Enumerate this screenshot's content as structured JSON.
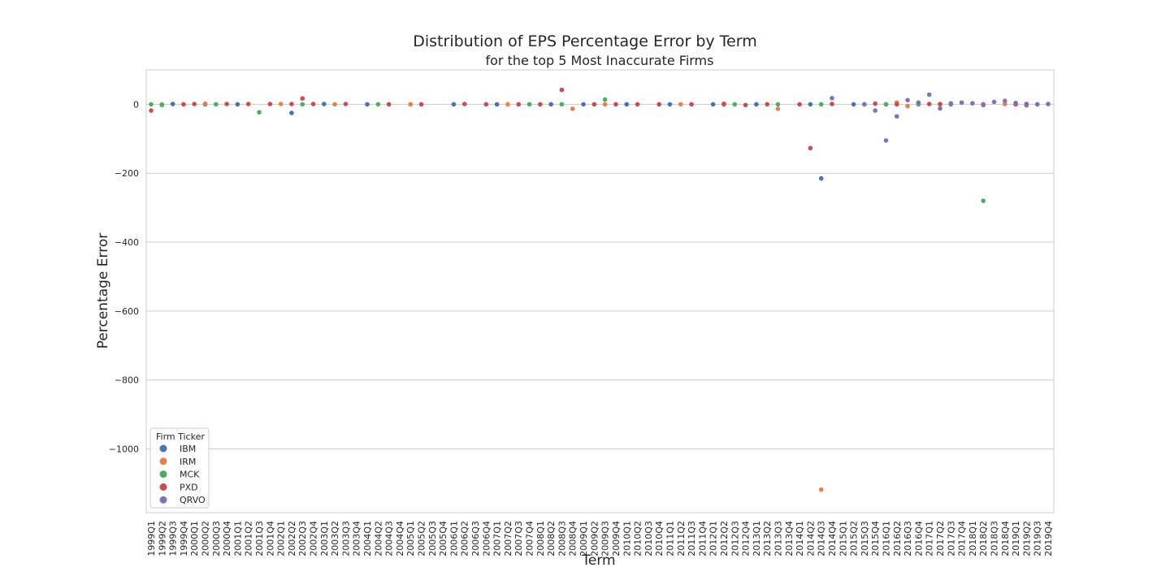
{
  "chart_data": {
    "type": "scatter",
    "title": "Distribution of EPS Percentage Error by Term",
    "subtitle": "for the top 5 Most Inaccurate Firms",
    "xlabel": "Term",
    "ylabel": "Percentage Error",
    "ylim": [
      -1185,
      100
    ],
    "yticks": [
      0,
      -200,
      -400,
      -600,
      -800,
      -1000
    ],
    "grid": "horizontal",
    "legend": {
      "title": "Firm Ticker",
      "placement": "lower-left"
    },
    "categories": [
      "1999Q1",
      "1999Q2",
      "1999Q3",
      "1999Q4",
      "2000Q1",
      "2000Q2",
      "2000Q3",
      "2000Q4",
      "2001Q1",
      "2001Q2",
      "2001Q3",
      "2001Q4",
      "2002Q1",
      "2002Q2",
      "2002Q3",
      "2002Q4",
      "2003Q1",
      "2003Q2",
      "2003Q3",
      "2003Q4",
      "2004Q1",
      "2004Q2",
      "2004Q3",
      "2004Q4",
      "2005Q1",
      "2005Q2",
      "2005Q3",
      "2005Q4",
      "2006Q1",
      "2006Q2",
      "2006Q3",
      "2006Q4",
      "2007Q1",
      "2007Q2",
      "2007Q3",
      "2007Q4",
      "2008Q1",
      "2008Q2",
      "2008Q3",
      "2008Q4",
      "2009Q1",
      "2009Q2",
      "2009Q3",
      "2009Q4",
      "2010Q1",
      "2010Q2",
      "2010Q3",
      "2010Q4",
      "2011Q1",
      "2011Q2",
      "2011Q3",
      "2011Q4",
      "2012Q1",
      "2012Q2",
      "2012Q3",
      "2012Q4",
      "2013Q1",
      "2013Q2",
      "2013Q3",
      "2013Q4",
      "2014Q1",
      "2014Q2",
      "2014Q3",
      "2014Q4",
      "2015Q1",
      "2015Q2",
      "2015Q3",
      "2015Q4",
      "2016Q1",
      "2016Q2",
      "2016Q3",
      "2016Q4",
      "2017Q1",
      "2017Q2",
      "2017Q3",
      "2017Q4",
      "2018Q1",
      "2018Q2",
      "2018Q3",
      "2018Q4",
      "2019Q1",
      "2019Q2",
      "2019Q3",
      "2019Q4"
    ],
    "series": [
      {
        "name": "IBM",
        "color": "#4c72b0",
        "points": [
          [
            "1999Q3",
            1
          ],
          [
            "2000Q2",
            0
          ],
          [
            "2001Q1",
            0
          ],
          [
            "2002Q2",
            -25
          ],
          [
            "2003Q1",
            1
          ],
          [
            "2004Q1",
            0
          ],
          [
            "2005Q1",
            0
          ],
          [
            "2006Q1",
            0
          ],
          [
            "2007Q1",
            0
          ],
          [
            "2008Q2",
            0
          ],
          [
            "2009Q1",
            0
          ],
          [
            "2010Q1",
            0
          ],
          [
            "2011Q1",
            0
          ],
          [
            "2012Q1",
            0
          ],
          [
            "2013Q1",
            0
          ],
          [
            "2014Q2",
            0
          ],
          [
            "2014Q3",
            -215
          ],
          [
            "2015Q2",
            0
          ],
          [
            "2016Q1",
            0
          ],
          [
            "2017Q3",
            0
          ]
        ]
      },
      {
        "name": "IRM",
        "color": "#dd8452",
        "points": [
          [
            "1999Q2",
            0
          ],
          [
            "2000Q2",
            2
          ],
          [
            "2002Q1",
            1
          ],
          [
            "2003Q2",
            0
          ],
          [
            "2005Q1",
            0
          ],
          [
            "2007Q2",
            0
          ],
          [
            "2008Q4",
            -13
          ],
          [
            "2009Q3",
            0
          ],
          [
            "2011Q2",
            0
          ],
          [
            "2012Q2",
            2
          ],
          [
            "2013Q3",
            -13
          ],
          [
            "2014Q3",
            -1118
          ],
          [
            "2015Q3",
            0
          ],
          [
            "2016Q2",
            5
          ],
          [
            "2016Q3",
            -5
          ],
          [
            "2017Q2",
            0
          ],
          [
            "2018Q4",
            1
          ]
        ]
      },
      {
        "name": "MCK",
        "color": "#55a868",
        "points": [
          [
            "1999Q1",
            0
          ],
          [
            "1999Q2",
            -2
          ],
          [
            "2000Q3",
            0
          ],
          [
            "2001Q3",
            -23
          ],
          [
            "2002Q3",
            0
          ],
          [
            "2004Q2",
            0
          ],
          [
            "2007Q4",
            0
          ],
          [
            "2008Q3",
            0
          ],
          [
            "2009Q3",
            14
          ],
          [
            "2012Q3",
            0
          ],
          [
            "2013Q3",
            0
          ],
          [
            "2014Q3",
            0
          ],
          [
            "2016Q1",
            0
          ],
          [
            "2016Q4",
            0
          ],
          [
            "2017Q3",
            0
          ],
          [
            "2018Q2",
            -280
          ],
          [
            "2019Q3",
            0
          ]
        ]
      },
      {
        "name": "PXD",
        "color": "#c44e52",
        "points": [
          [
            "1999Q1",
            -18
          ],
          [
            "1999Q4",
            0
          ],
          [
            "2000Q1",
            1
          ],
          [
            "2000Q4",
            1
          ],
          [
            "2001Q2",
            1
          ],
          [
            "2001Q4",
            1
          ],
          [
            "2002Q2",
            1
          ],
          [
            "2002Q3",
            17
          ],
          [
            "2002Q4",
            1
          ],
          [
            "2003Q3",
            1
          ],
          [
            "2004Q3",
            0
          ],
          [
            "2005Q2",
            0
          ],
          [
            "2006Q2",
            1
          ],
          [
            "2006Q4",
            0
          ],
          [
            "2007Q3",
            0
          ],
          [
            "2008Q1",
            0
          ],
          [
            "2008Q3",
            42
          ],
          [
            "2009Q2",
            0
          ],
          [
            "2009Q4",
            0
          ],
          [
            "2010Q2",
            0
          ],
          [
            "2010Q4",
            0
          ],
          [
            "2011Q3",
            0
          ],
          [
            "2012Q2",
            0
          ],
          [
            "2012Q4",
            -2
          ],
          [
            "2013Q2",
            0
          ],
          [
            "2014Q1",
            0
          ],
          [
            "2014Q2",
            -127
          ],
          [
            "2014Q4",
            1
          ],
          [
            "2015Q4",
            2
          ],
          [
            "2016Q2",
            0
          ],
          [
            "2017Q1",
            1
          ],
          [
            "2017Q2",
            1
          ],
          [
            "2018Q2",
            0
          ],
          [
            "2019Q1",
            0
          ],
          [
            "2019Q2",
            1
          ]
        ]
      },
      {
        "name": "QRVO",
        "color": "#8172b2",
        "points": [
          [
            "2014Q4",
            18
          ],
          [
            "2015Q3",
            0
          ],
          [
            "2015Q4",
            -18
          ],
          [
            "2016Q1",
            -105
          ],
          [
            "2016Q2",
            -35
          ],
          [
            "2016Q3",
            12
          ],
          [
            "2016Q4",
            5
          ],
          [
            "2017Q1",
            28
          ],
          [
            "2017Q2",
            -12
          ],
          [
            "2017Q3",
            3
          ],
          [
            "2017Q4",
            5
          ],
          [
            "2018Q1",
            3
          ],
          [
            "2018Q2",
            -2
          ],
          [
            "2018Q3",
            7
          ],
          [
            "2018Q4",
            10
          ],
          [
            "2019Q1",
            4
          ],
          [
            "2019Q2",
            -3
          ],
          [
            "2019Q3",
            0
          ],
          [
            "2019Q4",
            1
          ]
        ]
      }
    ]
  }
}
